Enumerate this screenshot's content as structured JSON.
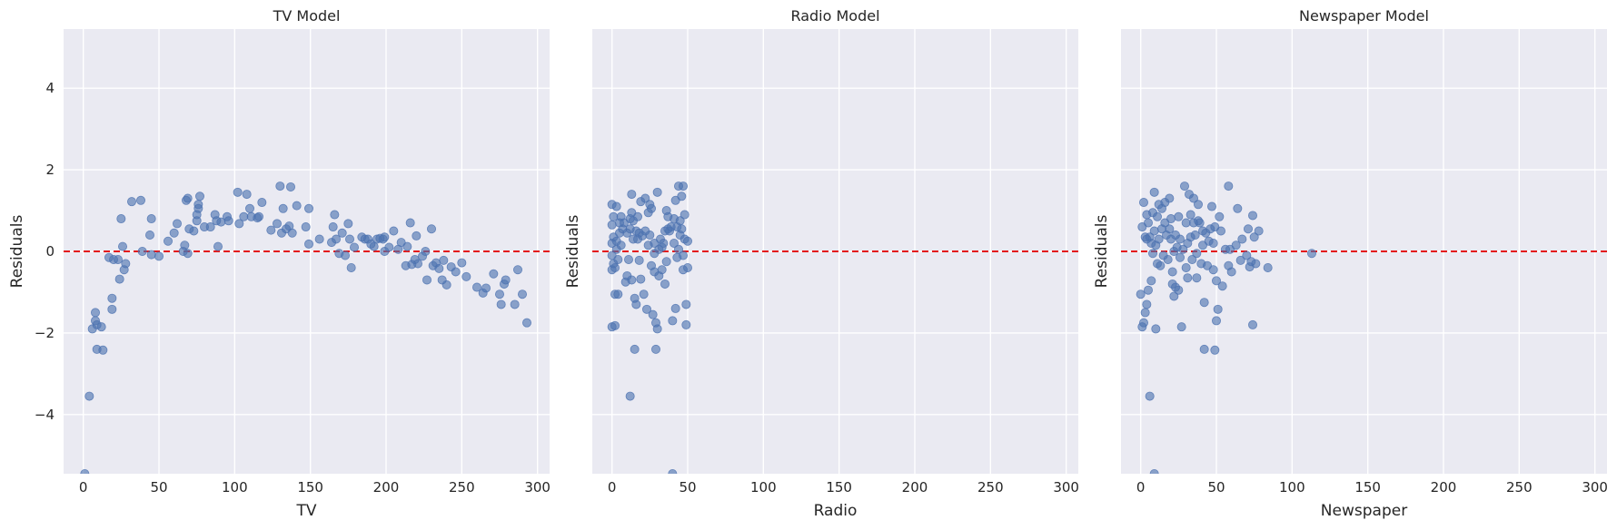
{
  "chart_data": [
    {
      "type": "scatter",
      "title": "TV Model",
      "xlabel": "TV",
      "ylabel": "Residuals",
      "xlim": [
        -13,
        308
      ],
      "ylim": [
        -5.45,
        5.45
      ],
      "xticks": [
        0,
        50,
        100,
        150,
        200,
        250,
        300
      ],
      "yticks": [
        -4,
        -2,
        0,
        2,
        4
      ],
      "reference_line": {
        "y": 0,
        "color": "#e41a1c",
        "style": "dashed"
      },
      "points": [
        [
          1,
          -5.45
        ],
        [
          4,
          -3.55
        ],
        [
          6,
          -1.9
        ],
        [
          8,
          -1.7
        ],
        [
          8,
          -1.5
        ],
        [
          9,
          -1.8
        ],
        [
          9,
          -2.4
        ],
        [
          12,
          -1.85
        ],
        [
          13,
          -2.42
        ],
        [
          17,
          -0.15
        ],
        [
          19,
          -1.42
        ],
        [
          19,
          -1.15
        ],
        [
          20,
          -0.2
        ],
        [
          23,
          -0.2
        ],
        [
          24,
          -0.68
        ],
        [
          25,
          0.8
        ],
        [
          26,
          0.12
        ],
        [
          27,
          -0.45
        ],
        [
          28,
          -0.3
        ],
        [
          32,
          1.22
        ],
        [
          38,
          1.25
        ],
        [
          39,
          0.0
        ],
        [
          44,
          0.4
        ],
        [
          45,
          -0.08
        ],
        [
          45,
          0.8
        ],
        [
          50,
          -0.12
        ],
        [
          56,
          0.25
        ],
        [
          60,
          0.45
        ],
        [
          62,
          0.68
        ],
        [
          66,
          0.0
        ],
        [
          67,
          0.15
        ],
        [
          68,
          1.25
        ],
        [
          69,
          1.3
        ],
        [
          69,
          -0.05
        ],
        [
          70,
          0.55
        ],
        [
          73,
          0.5
        ],
        [
          75,
          0.75
        ],
        [
          75,
          0.9
        ],
        [
          76,
          1.05
        ],
        [
          76,
          1.15
        ],
        [
          77,
          1.35
        ],
        [
          80,
          0.6
        ],
        [
          84,
          0.6
        ],
        [
          87,
          0.9
        ],
        [
          88,
          0.75
        ],
        [
          89,
          0.12
        ],
        [
          91,
          0.72
        ],
        [
          95,
          0.85
        ],
        [
          96,
          0.75
        ],
        [
          102,
          1.45
        ],
        [
          103,
          0.68
        ],
        [
          106,
          0.85
        ],
        [
          108,
          1.4
        ],
        [
          110,
          1.05
        ],
        [
          111,
          0.85
        ],
        [
          115,
          0.82
        ],
        [
          116,
          0.85
        ],
        [
          118,
          1.2
        ],
        [
          124,
          0.52
        ],
        [
          128,
          0.68
        ],
        [
          130,
          1.6
        ],
        [
          131,
          0.45
        ],
        [
          132,
          1.05
        ],
        [
          134,
          0.55
        ],
        [
          136,
          0.62
        ],
        [
          137,
          1.58
        ],
        [
          138,
          0.45
        ],
        [
          141,
          1.12
        ],
        [
          147,
          0.6
        ],
        [
          149,
          1.05
        ],
        [
          149,
          0.18
        ],
        [
          156,
          0.3
        ],
        [
          164,
          0.22
        ],
        [
          165,
          0.6
        ],
        [
          166,
          0.9
        ],
        [
          167,
          0.3
        ],
        [
          169,
          -0.05
        ],
        [
          171,
          0.45
        ],
        [
          173,
          -0.1
        ],
        [
          175,
          0.68
        ],
        [
          176,
          0.3
        ],
        [
          177,
          -0.4
        ],
        [
          179,
          0.1
        ],
        [
          184,
          0.35
        ],
        [
          186,
          0.3
        ],
        [
          188,
          0.3
        ],
        [
          190,
          0.18
        ],
        [
          192,
          0.12
        ],
        [
          194,
          0.3
        ],
        [
          196,
          0.32
        ],
        [
          198,
          0.3
        ],
        [
          199,
          0.35
        ],
        [
          199,
          0.0
        ],
        [
          202,
          0.1
        ],
        [
          205,
          0.5
        ],
        [
          208,
          0.05
        ],
        [
          210,
          0.22
        ],
        [
          213,
          -0.35
        ],
        [
          214,
          0.12
        ],
        [
          216,
          0.7
        ],
        [
          217,
          -0.32
        ],
        [
          219,
          -0.2
        ],
        [
          220,
          0.38
        ],
        [
          221,
          -0.3
        ],
        [
          224,
          -0.12
        ],
        [
          226,
          0.0
        ],
        [
          227,
          -0.7
        ],
        [
          230,
          0.55
        ],
        [
          231,
          -0.35
        ],
        [
          233,
          -0.28
        ],
        [
          235,
          -0.42
        ],
        [
          237,
          -0.7
        ],
        [
          238,
          -0.22
        ],
        [
          240,
          -0.82
        ],
        [
          243,
          -0.38
        ],
        [
          246,
          -0.5
        ],
        [
          250,
          -0.28
        ],
        [
          253,
          -0.62
        ],
        [
          260,
          -0.88
        ],
        [
          264,
          -1.02
        ],
        [
          266,
          -0.9
        ],
        [
          271,
          -0.55
        ],
        [
          275,
          -1.05
        ],
        [
          276,
          -1.3
        ],
        [
          278,
          -0.8
        ],
        [
          279,
          -0.7
        ],
        [
          285,
          -1.3
        ],
        [
          287,
          -0.45
        ],
        [
          290,
          -1.05
        ],
        [
          293,
          -1.75
        ]
      ]
    },
    {
      "type": "scatter",
      "title": "Radio Model",
      "xlabel": "Radio",
      "ylabel": "Residuals",
      "xlim": [
        -13,
        308
      ],
      "ylim": [
        -5.45,
        5.45
      ],
      "xticks": [
        0,
        50,
        100,
        150,
        200,
        250,
        300
      ],
      "yticks": [
        -4,
        -2,
        0,
        2,
        4
      ],
      "reference_line": {
        "y": 0,
        "color": "#e41a1c",
        "style": "dashed"
      },
      "points": [
        [
          0,
          0.65
        ],
        [
          0,
          1.15
        ],
        [
          0,
          0.2
        ],
        [
          0,
          -0.1
        ],
        [
          0,
          -0.45
        ],
        [
          0,
          -1.85
        ],
        [
          1,
          0.85
        ],
        [
          1,
          0.35
        ],
        [
          1,
          -0.3
        ],
        [
          2,
          -1.82
        ],
        [
          2,
          -0.4
        ],
        [
          2,
          -1.05
        ],
        [
          3,
          1.1
        ],
        [
          3,
          0.25
        ],
        [
          3,
          0.05
        ],
        [
          4,
          -0.2
        ],
        [
          4,
          -1.05
        ],
        [
          5,
          0.7
        ],
        [
          5,
          0.45
        ],
        [
          6,
          0.85
        ],
        [
          6,
          0.15
        ],
        [
          7,
          0.55
        ],
        [
          8,
          0.7
        ],
        [
          9,
          -0.75
        ],
        [
          10,
          0.45
        ],
        [
          10,
          -0.6
        ],
        [
          11,
          -0.2
        ],
        [
          12,
          0.55
        ],
        [
          12,
          0.8
        ],
        [
          12,
          -3.55
        ],
        [
          13,
          0.95
        ],
        [
          13,
          1.4
        ],
        [
          13,
          -0.7
        ],
        [
          14,
          0.3
        ],
        [
          14,
          0.75
        ],
        [
          15,
          -1.15
        ],
        [
          15,
          -2.4
        ],
        [
          16,
          -1.3
        ],
        [
          16,
          0.5
        ],
        [
          17,
          0.3
        ],
        [
          17,
          0.85
        ],
        [
          18,
          0.45
        ],
        [
          18,
          -0.22
        ],
        [
          19,
          -0.68
        ],
        [
          19,
          1.22
        ],
        [
          20,
          0.38
        ],
        [
          21,
          -1.05
        ],
        [
          22,
          0.5
        ],
        [
          22,
          1.3
        ],
        [
          23,
          -1.42
        ],
        [
          24,
          0.15
        ],
        [
          24,
          0.95
        ],
        [
          25,
          1.15
        ],
        [
          25,
          0.4
        ],
        [
          26,
          -0.35
        ],
        [
          26,
          1.05
        ],
        [
          27,
          -1.55
        ],
        [
          28,
          -0.5
        ],
        [
          28,
          -0.05
        ],
        [
          28,
          0.2
        ],
        [
          29,
          -2.4
        ],
        [
          29,
          -1.75
        ],
        [
          30,
          -1.9
        ],
        [
          30,
          1.45
        ],
        [
          31,
          -0.6
        ],
        [
          31,
          0.05
        ],
        [
          32,
          0.3
        ],
        [
          33,
          -0.45
        ],
        [
          33,
          0.1
        ],
        [
          34,
          0.2
        ],
        [
          35,
          -0.8
        ],
        [
          35,
          0.5
        ],
        [
          36,
          1.0
        ],
        [
          36,
          -0.25
        ],
        [
          37,
          0.85
        ],
        [
          37,
          0.55
        ],
        [
          38,
          0.5
        ],
        [
          39,
          0.6
        ],
        [
          40,
          -1.7
        ],
        [
          40,
          -5.45
        ],
        [
          41,
          0.8
        ],
        [
          41,
          0.2
        ],
        [
          42,
          1.25
        ],
        [
          42,
          -1.4
        ],
        [
          43,
          0.6
        ],
        [
          43,
          -0.15
        ],
        [
          44,
          1.6
        ],
        [
          44,
          0.05
        ],
        [
          45,
          0.75
        ],
        [
          45,
          0.4
        ],
        [
          46,
          1.35
        ],
        [
          46,
          0.55
        ],
        [
          47,
          1.6
        ],
        [
          47,
          -0.45
        ],
        [
          47,
          -0.1
        ],
        [
          48,
          0.9
        ],
        [
          48,
          0.3
        ],
        [
          49,
          -1.8
        ],
        [
          49,
          -1.3
        ],
        [
          50,
          0.25
        ],
        [
          50,
          -0.4
        ]
      ]
    },
    {
      "type": "scatter",
      "title": "Newspaper Model",
      "xlabel": "Newspaper",
      "ylabel": "Residuals",
      "xlim": [
        -13,
        308
      ],
      "ylim": [
        -5.45,
        5.45
      ],
      "xticks": [
        0,
        50,
        100,
        150,
        200,
        250,
        300
      ],
      "yticks": [
        -4,
        -2,
        0,
        2,
        4
      ],
      "reference_line": {
        "y": 0,
        "color": "#e41a1c",
        "style": "dashed"
      },
      "points": [
        [
          0,
          -1.05
        ],
        [
          1,
          0.6
        ],
        [
          1,
          -1.85
        ],
        [
          2,
          1.2
        ],
        [
          2,
          -1.75
        ],
        [
          3,
          0.35
        ],
        [
          3,
          -1.5
        ],
        [
          4,
          0.3
        ],
        [
          4,
          0.9
        ],
        [
          4,
          -1.3
        ],
        [
          5,
          0.7
        ],
        [
          5,
          -0.95
        ],
        [
          6,
          0.35
        ],
        [
          6,
          -3.55
        ],
        [
          7,
          -0.72
        ],
        [
          7,
          0.2
        ],
        [
          8,
          0.95
        ],
        [
          8,
          -0.05
        ],
        [
          9,
          1.45
        ],
        [
          9,
          -5.45
        ],
        [
          9,
          0.5
        ],
        [
          10,
          0.15
        ],
        [
          10,
          -1.9
        ],
        [
          11,
          0.85
        ],
        [
          11,
          -0.3
        ],
        [
          12,
          1.15
        ],
        [
          12,
          0.3
        ],
        [
          13,
          -0.35
        ],
        [
          14,
          1.05
        ],
        [
          14,
          0.55
        ],
        [
          15,
          -0.1
        ],
        [
          16,
          1.2
        ],
        [
          16,
          0.7
        ],
        [
          17,
          0.4
        ],
        [
          18,
          -0.2
        ],
        [
          19,
          1.3
        ],
        [
          19,
          0.55
        ],
        [
          20,
          0.8
        ],
        [
          20,
          0.3
        ],
        [
          21,
          -0.5
        ],
        [
          21,
          -0.8
        ],
        [
          22,
          0.0
        ],
        [
          22,
          -1.1
        ],
        [
          23,
          -0.88
        ],
        [
          23,
          0.4
        ],
        [
          24,
          0.1
        ],
        [
          25,
          -0.95
        ],
        [
          25,
          0.85
        ],
        [
          26,
          0.3
        ],
        [
          26,
          -0.15
        ],
        [
          27,
          -1.85
        ],
        [
          28,
          0.05
        ],
        [
          29,
          1.6
        ],
        [
          30,
          0.7
        ],
        [
          30,
          -0.4
        ],
        [
          31,
          0.2
        ],
        [
          31,
          -0.65
        ],
        [
          32,
          1.4
        ],
        [
          33,
          0.9
        ],
        [
          33,
          0.35
        ],
        [
          34,
          -0.2
        ],
        [
          35,
          0.7
        ],
        [
          35,
          1.3
        ],
        [
          36,
          0.4
        ],
        [
          37,
          -0.05
        ],
        [
          37,
          -0.65
        ],
        [
          38,
          0.75
        ],
        [
          38,
          1.15
        ],
        [
          39,
          0.7
        ],
        [
          40,
          -0.3
        ],
        [
          41,
          0.15
        ],
        [
          41,
          0.5
        ],
        [
          42,
          -2.4
        ],
        [
          42,
          -1.25
        ],
        [
          43,
          0.45
        ],
        [
          44,
          -0.35
        ],
        [
          45,
          0.25
        ],
        [
          46,
          0.55
        ],
        [
          47,
          1.1
        ],
        [
          48,
          -0.45
        ],
        [
          48,
          0.2
        ],
        [
          49,
          -2.42
        ],
        [
          49,
          0.6
        ],
        [
          50,
          -1.7
        ],
        [
          50,
          -0.72
        ],
        [
          51,
          -1.42
        ],
        [
          52,
          0.85
        ],
        [
          53,
          0.5
        ],
        [
          54,
          -0.85
        ],
        [
          56,
          0.05
        ],
        [
          58,
          -0.35
        ],
        [
          58,
          1.6
        ],
        [
          59,
          0.05
        ],
        [
          60,
          -0.5
        ],
        [
          63,
          0.15
        ],
        [
          64,
          1.05
        ],
        [
          66,
          -0.22
        ],
        [
          67,
          0.3
        ],
        [
          70,
          -0.1
        ],
        [
          71,
          0.55
        ],
        [
          72,
          -0.38
        ],
        [
          73,
          -0.25
        ],
        [
          74,
          -1.8
        ],
        [
          74,
          0.88
        ],
        [
          75,
          0.35
        ],
        [
          76,
          -0.3
        ],
        [
          78,
          0.5
        ],
        [
          84,
          -0.4
        ],
        [
          113,
          -0.05
        ]
      ]
    }
  ]
}
